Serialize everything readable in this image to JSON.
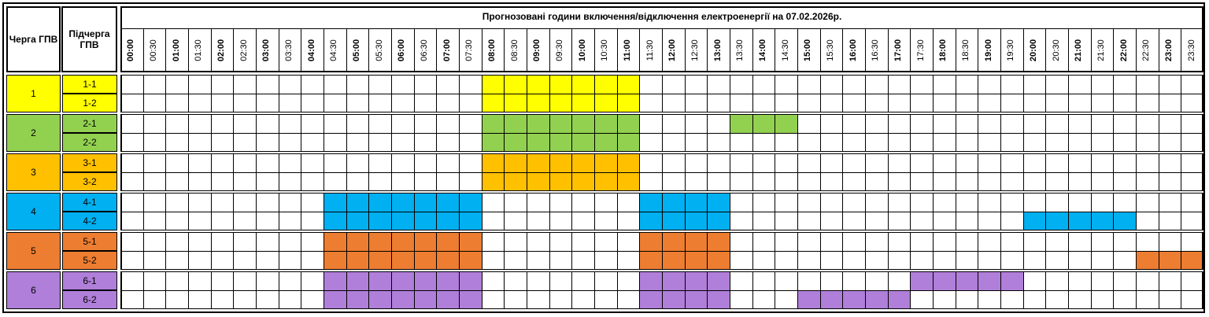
{
  "header": {
    "queue_label": "Черга ГПВ",
    "subqueue_label": "Підчерга ГПВ",
    "title": "Прогнозовані години включення/відключення електроенергії на 07.02.2026р."
  },
  "times": [
    "00:00",
    "00:30",
    "01:00",
    "01:30",
    "02:00",
    "02:30",
    "03:00",
    "03:30",
    "04:00",
    "04:30",
    "05:00",
    "05:30",
    "06:00",
    "06:30",
    "07:00",
    "07:30",
    "08:00",
    "08:30",
    "09:00",
    "09:30",
    "10:00",
    "10:30",
    "11:00",
    "11:30",
    "12:00",
    "12:30",
    "13:00",
    "13:30",
    "14:00",
    "14:30",
    "15:00",
    "15:30",
    "16:00",
    "16:30",
    "17:00",
    "17:30",
    "18:00",
    "18:30",
    "19:00",
    "19:30",
    "20:00",
    "20:30",
    "21:00",
    "21:30",
    "22:00",
    "22:30",
    "23:00",
    "23:30"
  ],
  "groups": [
    {
      "label": "1",
      "color": "#ffff00",
      "subs": [
        {
          "label": "1-1",
          "off": [
            [
              16,
              23
            ]
          ]
        },
        {
          "label": "1-2",
          "off": [
            [
              16,
              23
            ]
          ]
        }
      ]
    },
    {
      "label": "2",
      "color": "#92d050",
      "subs": [
        {
          "label": "2-1",
          "off": [
            [
              16,
              23
            ],
            [
              27,
              30
            ]
          ]
        },
        {
          "label": "2-2",
          "off": [
            [
              16,
              23
            ]
          ]
        }
      ]
    },
    {
      "label": "3",
      "color": "#ffc000",
      "subs": [
        {
          "label": "3-1",
          "off": [
            [
              16,
              23
            ]
          ]
        },
        {
          "label": "3-2",
          "off": [
            [
              16,
              23
            ]
          ]
        }
      ]
    },
    {
      "label": "4",
      "color": "#00b0f0",
      "subs": [
        {
          "label": "4-1",
          "off": [
            [
              9,
              16
            ],
            [
              23,
              27
            ]
          ]
        },
        {
          "label": "4-2",
          "off": [
            [
              9,
              16
            ],
            [
              23,
              27
            ],
            [
              40,
              45
            ]
          ]
        }
      ]
    },
    {
      "label": "5",
      "color": "#ed7d31",
      "subs": [
        {
          "label": "5-1",
          "off": [
            [
              9,
              16
            ],
            [
              23,
              27
            ]
          ]
        },
        {
          "label": "5-2",
          "off": [
            [
              9,
              16
            ],
            [
              23,
              27
            ],
            [
              45,
              48
            ]
          ]
        }
      ]
    },
    {
      "label": "6",
      "color": "#b07fd9",
      "subs": [
        {
          "label": "6-1",
          "off": [
            [
              9,
              16
            ],
            [
              23,
              27
            ],
            [
              35,
              40
            ]
          ]
        },
        {
          "label": "6-2",
          "off": [
            [
              9,
              16
            ],
            [
              23,
              27
            ],
            [
              30,
              35
            ]
          ]
        }
      ]
    }
  ]
}
